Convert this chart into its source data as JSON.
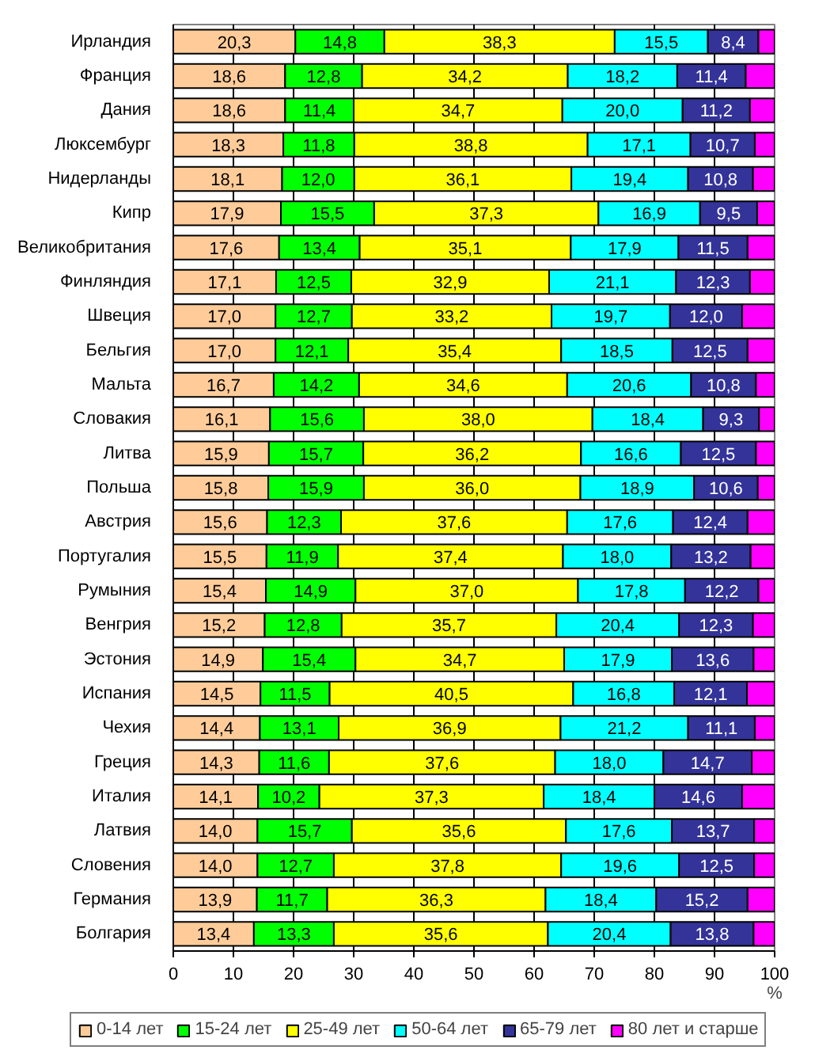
{
  "chart_data": {
    "type": "bar",
    "orientation": "horizontal",
    "stacked": true,
    "categories": [
      "Ирландия",
      "Франция",
      "Дания",
      "Люксембург",
      "Нидерланды",
      "Кипр",
      "Великобритания",
      "Финляндия",
      "Швеция",
      "Бельгия",
      "Мальта",
      "Словакия",
      "Литва",
      "Польша",
      "Австрия",
      "Португалия",
      "Румыния",
      "Венгрия",
      "Эстония",
      "Испания",
      "Чехия",
      "Греция",
      "Италия",
      "Латвия",
      "Словения",
      "Германия",
      "Болгария"
    ],
    "series": [
      {
        "name": "0-14 лет",
        "color": "#ffcc99",
        "values": [
          20.3,
          18.6,
          18.6,
          18.3,
          18.1,
          17.9,
          17.6,
          17.1,
          17.0,
          17.0,
          16.7,
          16.1,
          15.9,
          15.8,
          15.6,
          15.5,
          15.4,
          15.2,
          14.9,
          14.5,
          14.4,
          14.3,
          14.1,
          14.0,
          14.0,
          13.9,
          13.4
        ],
        "value_labels": [
          "20,3",
          "18,6",
          "18,6",
          "18,3",
          "18,1",
          "17,9",
          "17,6",
          "17,1",
          "17,0",
          "17,0",
          "16,7",
          "16,1",
          "15,9",
          "15,8",
          "15,6",
          "15,5",
          "15,4",
          "15,2",
          "14,9",
          "14,5",
          "14,4",
          "14,3",
          "14,1",
          "14,0",
          "14,0",
          "13,9",
          "13,4"
        ]
      },
      {
        "name": "15-24 лет",
        "color": "#00ff00",
        "values": [
          14.8,
          12.8,
          11.4,
          11.8,
          12.0,
          15.5,
          13.4,
          12.5,
          12.7,
          12.1,
          14.2,
          15.6,
          15.7,
          15.9,
          12.3,
          11.9,
          14.9,
          12.8,
          15.4,
          11.5,
          13.1,
          11.6,
          10.2,
          15.7,
          12.7,
          11.7,
          13.3
        ],
        "value_labels": [
          "14,8",
          "12,8",
          "11,4",
          "11,8",
          "12,0",
          "15,5",
          "13,4",
          "12,5",
          "12,7",
          "12,1",
          "14,2",
          "15,6",
          "15,7",
          "15,9",
          "12,3",
          "11,9",
          "14,9",
          "12,8",
          "15,4",
          "11,5",
          "13,1",
          "11,6",
          "10,2",
          "15,7",
          "12,7",
          "11,7",
          "13,3"
        ]
      },
      {
        "name": "25-49 лет",
        "color": "#ffff00",
        "values": [
          38.3,
          34.2,
          34.7,
          38.8,
          36.1,
          37.3,
          35.1,
          32.9,
          33.2,
          35.4,
          34.6,
          38.0,
          36.2,
          36.0,
          37.6,
          37.4,
          37.0,
          35.7,
          34.7,
          40.5,
          36.9,
          37.6,
          37.3,
          35.6,
          37.8,
          36.3,
          35.6
        ],
        "value_labels": [
          "38,3",
          "34,2",
          "34,7",
          "38,8",
          "36,1",
          "37,3",
          "35,1",
          "32,9",
          "33,2",
          "35,4",
          "34,6",
          "38,0",
          "36,2",
          "36,0",
          "37,6",
          "37,4",
          "37,0",
          "35,7",
          "34,7",
          "40,5",
          "36,9",
          "37,6",
          "37,3",
          "35,6",
          "37,8",
          "36,3",
          "35,6"
        ]
      },
      {
        "name": "50-64 лет",
        "color": "#00ffff",
        "values": [
          15.5,
          18.2,
          20.0,
          17.1,
          19.4,
          16.9,
          17.9,
          21.1,
          19.7,
          18.5,
          20.6,
          18.4,
          16.6,
          18.9,
          17.6,
          18.0,
          17.8,
          20.4,
          17.9,
          16.8,
          21.2,
          18.0,
          18.4,
          17.6,
          19.6,
          18.4,
          20.4
        ],
        "value_labels": [
          "15,5",
          "18,2",
          "20,0",
          "17,1",
          "19,4",
          "16,9",
          "17,9",
          "21,1",
          "19,7",
          "18,5",
          "20,6",
          "18,4",
          "16,6",
          "18,9",
          "17,6",
          "18,0",
          "17,8",
          "20,4",
          "17,9",
          "16,8",
          "21,2",
          "18,0",
          "18,4",
          "17,6",
          "19,6",
          "18,4",
          "20,4"
        ]
      },
      {
        "name": "65-79 лет",
        "color": "#333399",
        "values": [
          8.4,
          11.4,
          11.2,
          10.7,
          10.8,
          9.5,
          11.5,
          12.3,
          12.0,
          12.5,
          10.8,
          9.3,
          12.5,
          10.6,
          12.4,
          13.2,
          12.2,
          12.3,
          13.6,
          12.1,
          11.1,
          14.7,
          14.6,
          13.7,
          12.5,
          15.2,
          13.8
        ],
        "value_labels": [
          "8,4",
          "11,4",
          "11,2",
          "10,7",
          "10,8",
          "9,5",
          "11,5",
          "12,3",
          "12,0",
          "12,5",
          "10,8",
          "9,3",
          "12,5",
          "10,6",
          "12,4",
          "13,2",
          "12,2",
          "12,3",
          "13,6",
          "12,1",
          "11,1",
          "14,7",
          "14,6",
          "13,7",
          "12,5",
          "15,2",
          "13,8"
        ]
      },
      {
        "name": "80 лет и старше",
        "color": "#ff00ff",
        "values": [
          2.7,
          4.8,
          4.1,
          3.3,
          3.6,
          2.9,
          4.5,
          4.1,
          5.4,
          4.5,
          3.1,
          2.6,
          3.1,
          2.8,
          4.5,
          4.0,
          2.7,
          3.6,
          3.5,
          4.6,
          3.3,
          3.8,
          5.4,
          3.4,
          3.4,
          4.5,
          3.5
        ]
      }
    ],
    "xlim": [
      0,
      100
    ],
    "xticks": [
      0,
      10,
      20,
      30,
      40,
      50,
      60,
      70,
      80,
      90,
      100
    ],
    "xlabel": "%",
    "grid": "x",
    "legend": "bottom"
  }
}
